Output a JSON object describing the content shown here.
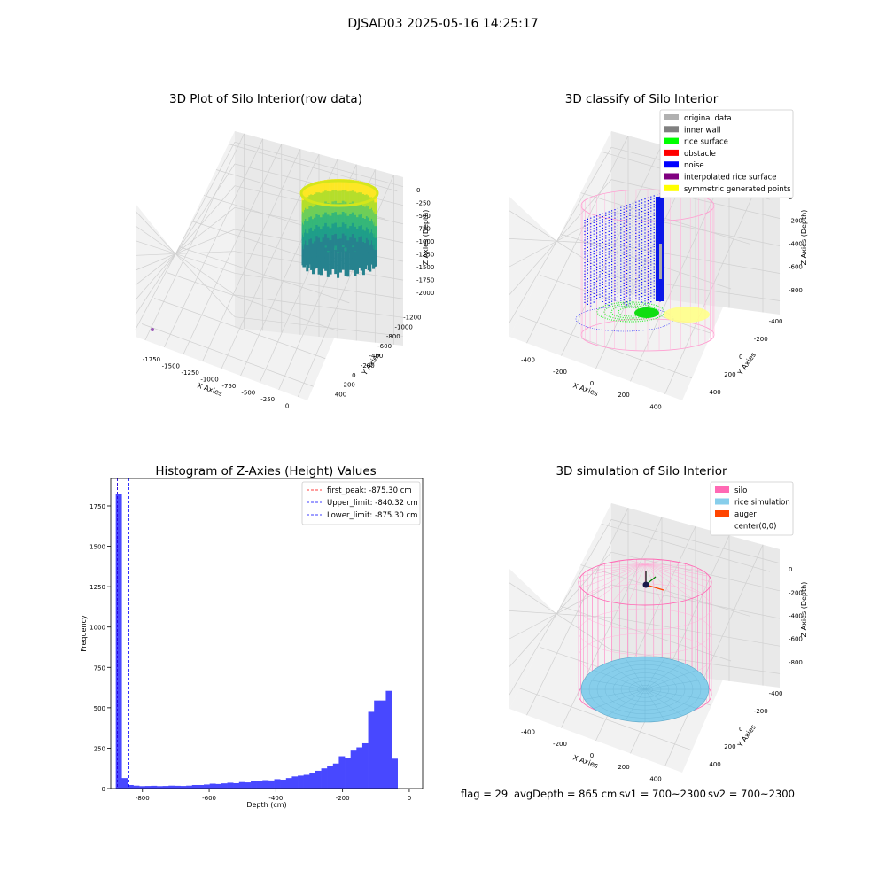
{
  "figure": {
    "suptitle": "DJSAD03 2025-05-16 14:25:17",
    "footer": {
      "flag": "flag = 29",
      "avg_depth": "avgDepth = 865 cm",
      "sv1": "sv1 = 700~2300",
      "sv2": "sv2 = 700~2300"
    }
  },
  "chart_data": [
    {
      "type": "scatter",
      "projection": "3d",
      "title": "3D Plot of Silo Interior(row data)",
      "xlabel": "X Axies",
      "ylabel": "Y Axies",
      "zlabel": "Z Axies (Depth)",
      "xticks": [
        "-1750",
        "-1500",
        "-1250",
        "-1000",
        "-750",
        "-500",
        "-250",
        "0"
      ],
      "yticks": [
        "400",
        "200",
        "0",
        "-200",
        "-400",
        "-600",
        "-800",
        "-1000",
        "-1200"
      ],
      "zticks": [
        "0",
        "-250",
        "-500",
        "-750",
        "-1000",
        "-1250",
        "-1500",
        "-1750",
        "-2000"
      ],
      "xlim": [
        -1850,
        100
      ],
      "ylim": [
        -1250,
        450
      ],
      "zlim": [
        -2100,
        50
      ],
      "colormap": "viridis",
      "description_points": "dense cylindrical band of points near x≈-100, y≈-200, depth 0 to -900; single outlier near x≈-1800",
      "grid": true
    },
    {
      "type": "scatter",
      "projection": "3d",
      "title": "3D classify of Silo Interior",
      "xlabel": "X Axies",
      "ylabel": "Y Axies",
      "zlabel": "Z Axies (Depth)",
      "xticks": [
        "-400",
        "-200",
        "0",
        "200",
        "400"
      ],
      "yticks": [
        "400",
        "200",
        "0",
        "-200",
        "-400"
      ],
      "zticks": [
        "0",
        "-200",
        "-400",
        "-600",
        "-800"
      ],
      "grid": true,
      "legend_position": "top-right",
      "legend": [
        {
          "label": "original data",
          "color": "#b0b0b0"
        },
        {
          "label": "inner wall",
          "color": "#808080"
        },
        {
          "label": "rice surface",
          "color": "#00ff00"
        },
        {
          "label": "obstacle",
          "color": "#ff0000"
        },
        {
          "label": "noise",
          "color": "#0000ff"
        },
        {
          "label": "interpolated rice surface",
          "color": "#800080"
        },
        {
          "label": "symmetric generated points",
          "color": "#ffff00"
        }
      ]
    },
    {
      "type": "bar",
      "title": "Histogram of Z-Axies (Height) Values",
      "xlabel": "Depth (cm)",
      "ylabel": "Frequency",
      "xlim": [
        -895,
        40
      ],
      "ylim": [
        0,
        1920
      ],
      "xticks": [
        -800,
        -600,
        -400,
        -200,
        0
      ],
      "yticks": [
        0,
        250,
        500,
        750,
        1000,
        1250,
        1500,
        1750
      ],
      "bar_color": "#4848ff",
      "bin_start": -880,
      "bin_width": 17.6,
      "values": [
        1825,
        65,
        22,
        18,
        15,
        16,
        17,
        15,
        16,
        18,
        17,
        16,
        18,
        22,
        22,
        25,
        30,
        28,
        32,
        36,
        33,
        40,
        38,
        45,
        47,
        52,
        50,
        58,
        55,
        65,
        75,
        80,
        85,
        95,
        110,
        125,
        140,
        155,
        200,
        190,
        235,
        255,
        280,
        475,
        545,
        545,
        605,
        185
      ],
      "vlines": [
        {
          "label": "first_peak: -875.30 cm",
          "x": -875.3,
          "color": "#ff0000",
          "style": "dashed"
        },
        {
          "label": "Upper_limit: -840.32 cm",
          "x": -840.32,
          "color": "#0000ff",
          "style": "dashed"
        },
        {
          "label": "Lower_limit: -875.30 cm",
          "x": -875.3,
          "color": "#0000ff",
          "style": "dashed"
        }
      ],
      "legend_position": "top-right"
    },
    {
      "type": "scatter",
      "projection": "3d",
      "title": "3D simulation of Silo Interior",
      "xlabel": "X Axies",
      "ylabel": "Y Axies",
      "zlabel": "Z Axies (Depth)",
      "xticks": [
        "-400",
        "-200",
        "0",
        "200",
        "400"
      ],
      "yticks": [
        "400",
        "200",
        "0",
        "-200",
        "-400"
      ],
      "zticks": [
        "0",
        "-200",
        "-400",
        "-600",
        "-800"
      ],
      "grid": true,
      "legend_position": "top-right",
      "legend": [
        {
          "label": "silo",
          "color": "#ff69b4"
        },
        {
          "label": "rice simulation",
          "color": "#87ceeb"
        },
        {
          "label": "auger",
          "color": "#ff4500"
        },
        {
          "label": "center(0,0)",
          "color": "#ffffff"
        }
      ]
    }
  ]
}
